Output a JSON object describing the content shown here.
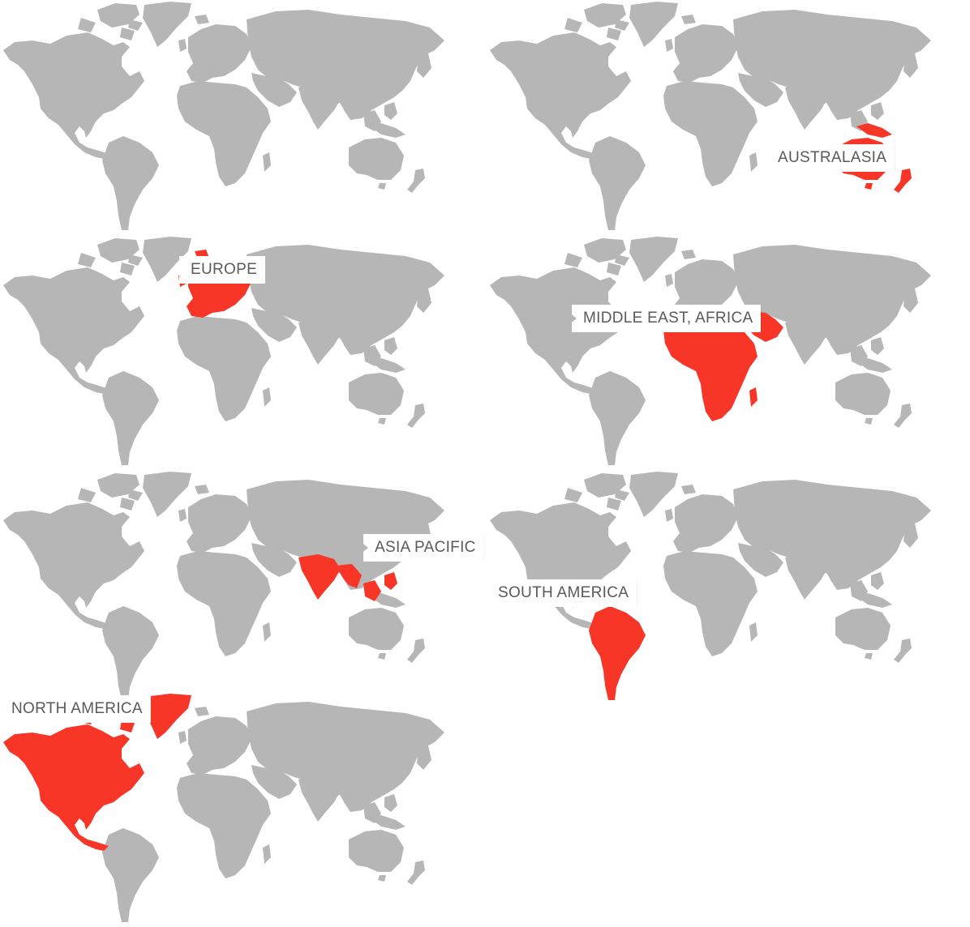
{
  "colors": {
    "land": "#b7b6b7",
    "highlight": "#f83628",
    "label_text": "#5a5a5a",
    "label_bg": "#ffffff"
  },
  "regions": [
    {
      "id": "world",
      "label": ""
    },
    {
      "id": "australasia",
      "label": "AUSTRALASIA"
    },
    {
      "id": "europe",
      "label": "EUROPE"
    },
    {
      "id": "middle-east-africa",
      "label": "MIDDLE EAST, AFRICA"
    },
    {
      "id": "asia-pacific",
      "label": "ASIA PACIFIC"
    },
    {
      "id": "south-america",
      "label": "SOUTH AMERICA"
    },
    {
      "id": "north-america",
      "label": "NORTH AMERICA"
    }
  ]
}
